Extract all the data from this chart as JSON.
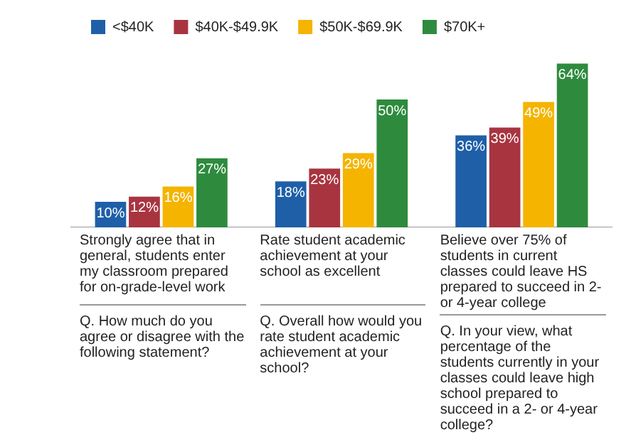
{
  "chart_data": {
    "type": "bar",
    "categories": [
      "Strongly agree that in general, students enter my classroom prepared for on-grade-level work",
      "Rate student academic achievement at your school as excellent",
      "Believe over 75% of students in current classes could leave HS prepared to succeed in 2- or 4-year college"
    ],
    "series": [
      {
        "name": "<$40K",
        "color": "#1f5fa8",
        "values": [
          10,
          18,
          36
        ],
        "value_labels": [
          "10%",
          "18%",
          "36%"
        ]
      },
      {
        "name": "$40K-$49.9K",
        "color": "#a83440",
        "values": [
          12,
          23,
          39
        ],
        "value_labels": [
          "12%",
          "23%",
          "39%"
        ]
      },
      {
        "name": "$50K-$69.9K",
        "color": "#f4b400",
        "values": [
          16,
          29,
          49
        ],
        "value_labels": [
          "16%",
          "29%",
          "49%"
        ]
      },
      {
        "name": "$70K+",
        "color": "#2e8b3e",
        "values": [
          27,
          50,
          64
        ],
        "value_labels": [
          "27%",
          "50%",
          "64%"
        ]
      }
    ],
    "annotations": [
      "Q. How much do you agree or disagree with the following statement?",
      "Q. Overall how would you rate student academic achievement at your school?",
      "Q. In your view, what percentage of the students currently in your classes could leave high school prepared to succeed in a 2- or 4-year college?"
    ],
    "legend": "top left",
    "grid": false
  }
}
